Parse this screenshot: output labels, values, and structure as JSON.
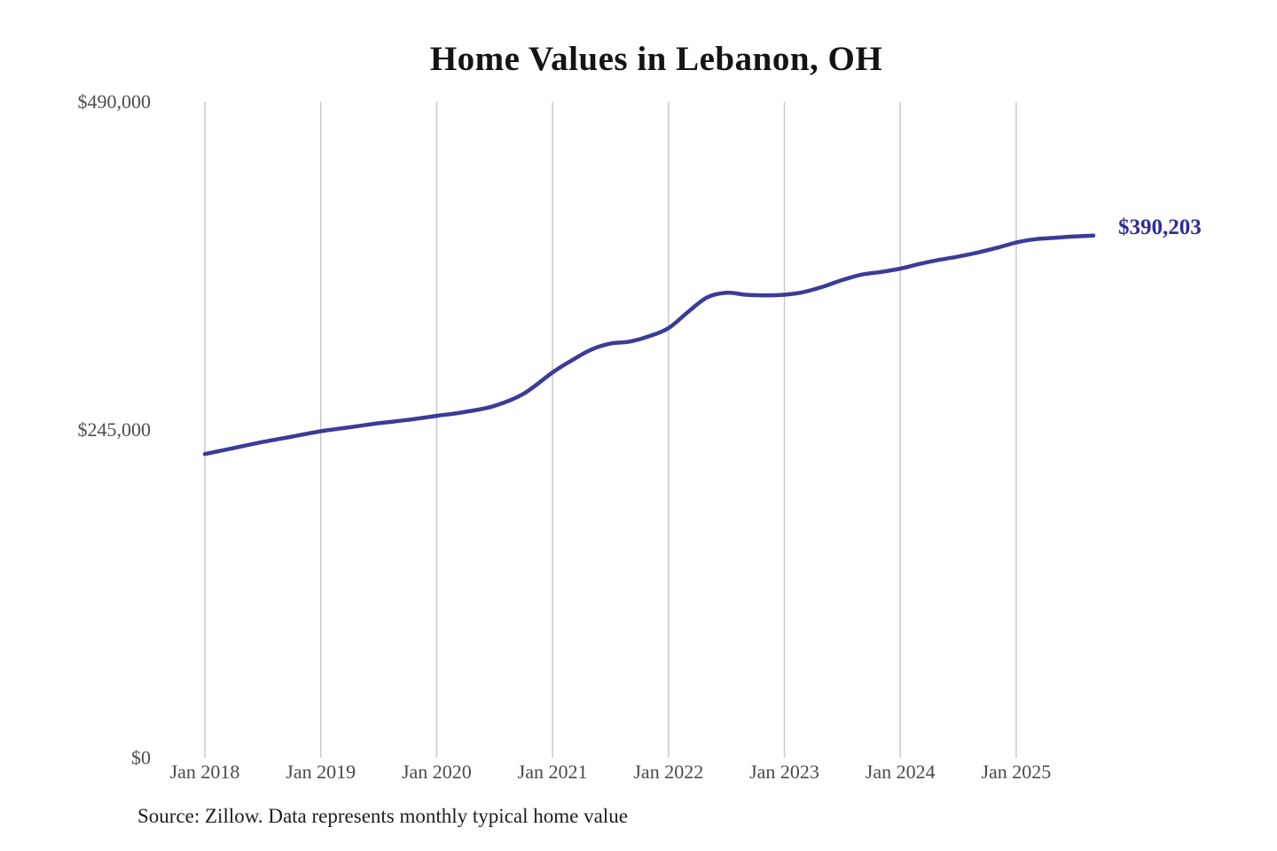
{
  "page": {
    "background": "#ffffff"
  },
  "chart_data": {
    "type": "line",
    "title": "Home Values in Lebanon, OH",
    "source_note": "Source: Zillow. Data represents monthly typical home value",
    "end_label": "$390,203",
    "latest_value": 390203,
    "xlabel": "",
    "ylabel": "",
    "ylim": [
      0,
      490000
    ],
    "grid": "vertical-only",
    "legend": "none",
    "line_color": "#3B3B98",
    "end_label_color": "#2E2E95",
    "grid_color": "#C9C9C9",
    "axis_label_color": "#4D4D4D",
    "title_color": "#141414",
    "y_ticks": [
      {
        "value": 490000,
        "label": "$490,000"
      },
      {
        "value": 245000,
        "label": "$245,000"
      },
      {
        "value": 0,
        "label": "$0"
      }
    ],
    "x_ticks": [
      "Jan 2018",
      "Jan 2019",
      "Jan 2020",
      "Jan 2021",
      "Jan 2022",
      "Jan 2023",
      "Jan 2024",
      "Jan 2025"
    ],
    "series": [
      {
        "name": "Monthly typical home value",
        "points": [
          {
            "date": "2018-01",
            "value": 227000
          },
          {
            "date": "2018-04",
            "value": 231500
          },
          {
            "date": "2018-07",
            "value": 236000
          },
          {
            "date": "2018-10",
            "value": 240000
          },
          {
            "date": "2019-01",
            "value": 244000
          },
          {
            "date": "2019-04",
            "value": 247000
          },
          {
            "date": "2019-07",
            "value": 250000
          },
          {
            "date": "2019-10",
            "value": 252500
          },
          {
            "date": "2020-01",
            "value": 255500
          },
          {
            "date": "2020-04",
            "value": 258500
          },
          {
            "date": "2020-07",
            "value": 263000
          },
          {
            "date": "2020-10",
            "value": 272000
          },
          {
            "date": "2021-01",
            "value": 288000
          },
          {
            "date": "2021-03",
            "value": 297000
          },
          {
            "date": "2021-05",
            "value": 305000
          },
          {
            "date": "2021-07",
            "value": 309500
          },
          {
            "date": "2021-09",
            "value": 311000
          },
          {
            "date": "2021-11",
            "value": 315000
          },
          {
            "date": "2022-01",
            "value": 321000
          },
          {
            "date": "2022-03",
            "value": 333000
          },
          {
            "date": "2022-05",
            "value": 344000
          },
          {
            "date": "2022-07",
            "value": 347500
          },
          {
            "date": "2022-09",
            "value": 346000
          },
          {
            "date": "2022-11",
            "value": 345500
          },
          {
            "date": "2023-01",
            "value": 346000
          },
          {
            "date": "2023-03",
            "value": 348000
          },
          {
            "date": "2023-05",
            "value": 352000
          },
          {
            "date": "2023-07",
            "value": 357000
          },
          {
            "date": "2023-09",
            "value": 361000
          },
          {
            "date": "2023-11",
            "value": 363000
          },
          {
            "date": "2024-01",
            "value": 365500
          },
          {
            "date": "2024-03",
            "value": 369000
          },
          {
            "date": "2024-05",
            "value": 372000
          },
          {
            "date": "2024-07",
            "value": 374500
          },
          {
            "date": "2024-09",
            "value": 377500
          },
          {
            "date": "2024-11",
            "value": 381000
          },
          {
            "date": "2025-01",
            "value": 385000
          },
          {
            "date": "2025-03",
            "value": 387500
          },
          {
            "date": "2025-05",
            "value": 388500
          },
          {
            "date": "2025-07",
            "value": 389500
          },
          {
            "date": "2025-09",
            "value": 390203
          }
        ]
      }
    ]
  }
}
